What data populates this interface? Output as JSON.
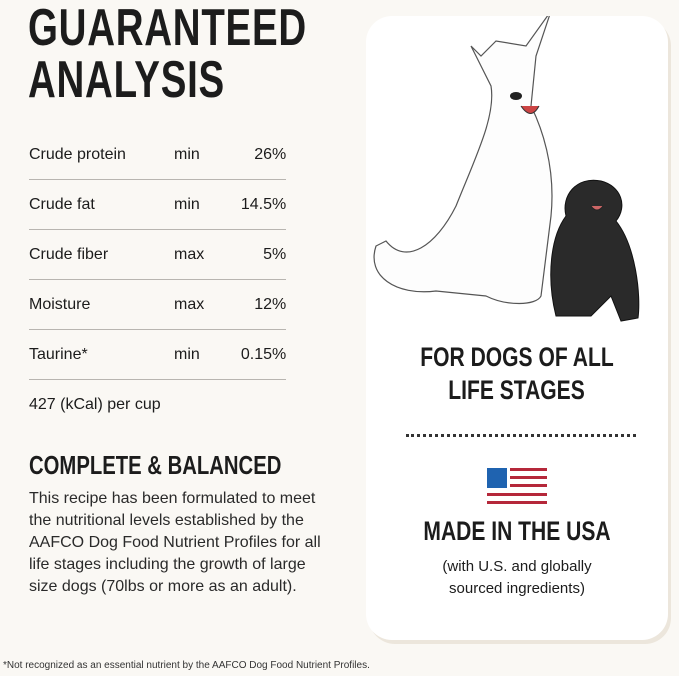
{
  "title": [
    "GUARANTEED",
    "ANALYSIS"
  ],
  "analysis": [
    {
      "nutrient": "Crude protein",
      "qualifier": "min",
      "value": "26",
      "unit": "%"
    },
    {
      "nutrient": "Crude fat",
      "qualifier": "min",
      "value": "14.5",
      "unit": "%"
    },
    {
      "nutrient": "Crude fiber",
      "qualifier": "max",
      "value": "5",
      "unit": "%"
    },
    {
      "nutrient": "Moisture",
      "qualifier": "max",
      "value": "12",
      "unit": "%"
    },
    {
      "nutrient": "Taurine*",
      "qualifier": "min",
      "value": "0.15",
      "unit": "%"
    }
  ],
  "calories": "427 (kCal) per cup",
  "complete_heading": "COMPLETE & BALANCED",
  "complete_text": "This recipe has been formulated to meet the nutritional levels established by the AAFCO Dog Food Nutrient Profiles for all life stages including the growth of large size dogs (70lbs or more as an adult).",
  "footnote": "*Not recognized as an essential nutrient by the AAFCO Dog Food Nutrient Profiles.",
  "card": {
    "life_stages": [
      "FOR DOGS OF ALL",
      "LIFE STAGES"
    ],
    "made_in": "MADE IN THE USA",
    "made_in_sub": [
      "(with U.S. and globally",
      "sourced ingredients)"
    ],
    "flag_icon": "us-flag-icon",
    "colors": {
      "flag_blue": "#1f63b0",
      "flag_red": "#b5283a"
    }
  }
}
